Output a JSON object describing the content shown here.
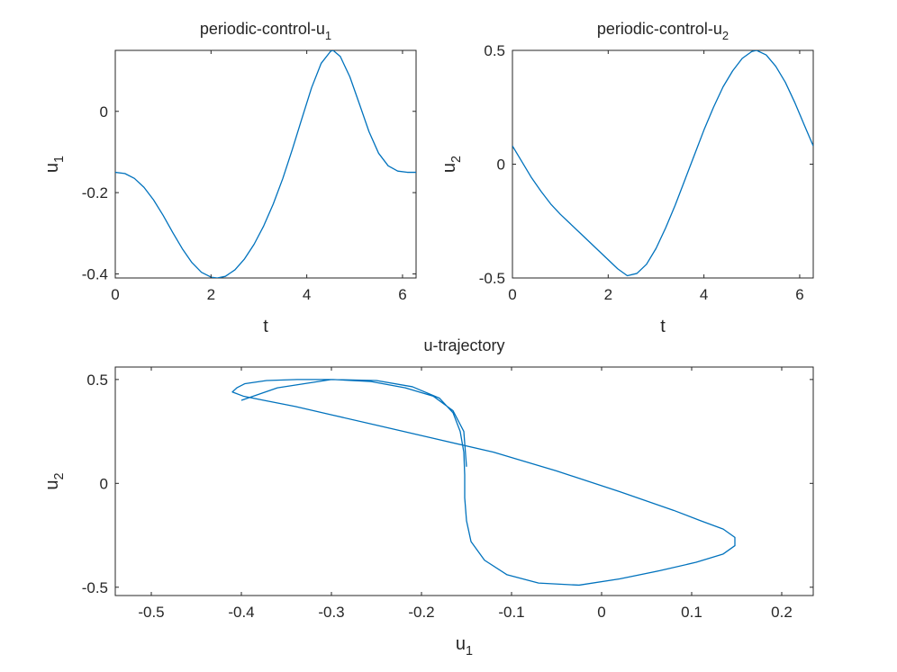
{
  "chart_data": [
    {
      "type": "line",
      "title": "periodic-control-u",
      "title_sub": "1",
      "xlabel": "t",
      "ylabel": "u",
      "ylabel_sub": "1",
      "xlim": [
        0,
        6.2832
      ],
      "ylim": [
        -0.41,
        0.15
      ],
      "xticks": [
        0,
        2,
        4,
        6
      ],
      "xtick_labels": [
        "0",
        "2",
        "4",
        "6"
      ],
      "yticks": [
        -0.4,
        -0.2,
        0
      ],
      "ytick_labels": [
        "-0.4",
        "-0.2",
        "0"
      ],
      "grid": false,
      "series": [
        {
          "color": "#0072bd",
          "x": [
            0,
            0.2,
            0.4,
            0.6,
            0.8,
            1.0,
            1.2,
            1.4,
            1.6,
            1.8,
            2.0,
            2.13,
            2.3,
            2.5,
            2.7,
            2.9,
            3.1,
            3.3,
            3.5,
            3.7,
            3.9,
            4.1,
            4.3,
            4.5,
            4.55,
            4.7,
            4.9,
            5.1,
            5.3,
            5.5,
            5.7,
            5.9,
            6.1,
            6.2832
          ],
          "y": [
            -0.15,
            -0.153,
            -0.165,
            -0.187,
            -0.218,
            -0.256,
            -0.298,
            -0.338,
            -0.372,
            -0.396,
            -0.408,
            -0.41,
            -0.406,
            -0.39,
            -0.363,
            -0.327,
            -0.282,
            -0.228,
            -0.165,
            -0.093,
            -0.017,
            0.058,
            0.118,
            0.148,
            0.15,
            0.135,
            0.085,
            0.018,
            -0.05,
            -0.103,
            -0.134,
            -0.147,
            -0.15,
            -0.15
          ]
        }
      ]
    },
    {
      "type": "line",
      "title": "periodic-control-u",
      "title_sub": "2",
      "xlabel": "t",
      "ylabel": "u",
      "ylabel_sub": "2",
      "xlim": [
        0,
        6.2832
      ],
      "ylim": [
        -0.5,
        0.5
      ],
      "xticks": [
        0,
        2,
        4,
        6
      ],
      "xtick_labels": [
        "0",
        "2",
        "4",
        "6"
      ],
      "yticks": [
        -0.5,
        0,
        0.5
      ],
      "ytick_labels": [
        "-0.5",
        "0",
        "0.5"
      ],
      "grid": false,
      "series": [
        {
          "color": "#0072bd",
          "x": [
            0,
            0.2,
            0.4,
            0.6,
            0.8,
            1.0,
            1.2,
            1.4,
            1.6,
            1.8,
            2.0,
            2.2,
            2.4,
            2.6,
            2.8,
            3.0,
            3.2,
            3.4,
            3.6,
            3.8,
            4.0,
            4.2,
            4.4,
            4.6,
            4.8,
            5.0,
            5.1,
            5.3,
            5.5,
            5.7,
            5.9,
            6.1,
            6.2832
          ],
          "y": [
            0.08,
            0.01,
            -0.06,
            -0.12,
            -0.175,
            -0.22,
            -0.26,
            -0.3,
            -0.34,
            -0.38,
            -0.42,
            -0.46,
            -0.49,
            -0.48,
            -0.44,
            -0.37,
            -0.28,
            -0.18,
            -0.07,
            0.04,
            0.15,
            0.25,
            0.34,
            0.41,
            0.465,
            0.495,
            0.5,
            0.48,
            0.43,
            0.36,
            0.27,
            0.17,
            0.08
          ]
        }
      ]
    },
    {
      "type": "line",
      "title": "u-trajectory",
      "xlabel": "u",
      "xlabel_sub": "1",
      "ylabel": "u",
      "ylabel_sub": "2",
      "xlim": [
        -0.54,
        0.235
      ],
      "ylim": [
        -0.54,
        0.56
      ],
      "xticks": [
        -0.5,
        -0.4,
        -0.3,
        -0.2,
        -0.1,
        0,
        0.1,
        0.2
      ],
      "xtick_labels": [
        "-0.5",
        "-0.4",
        "-0.3",
        "-0.2",
        "-0.1",
        "0",
        "0.1",
        "0.2"
      ],
      "yticks": [
        -0.5,
        0,
        0.5
      ],
      "ytick_labels": [
        "-0.5",
        "0",
        "0.5"
      ],
      "grid": false,
      "series": [
        {
          "color": "#0072bd",
          "x": [
            -0.15,
            -0.153,
            -0.165,
            -0.187,
            -0.218,
            -0.256,
            -0.298,
            -0.338,
            -0.372,
            -0.396,
            -0.405,
            -0.41,
            -0.398,
            -0.375,
            -0.34,
            -0.3,
            -0.25,
            -0.19,
            -0.12,
            -0.05,
            0.02,
            0.08,
            0.11,
            0.135,
            0.148,
            0.148,
            0.135,
            0.105,
            0.065,
            0.02,
            -0.025,
            -0.07,
            -0.105,
            -0.13,
            -0.145,
            -0.15,
            -0.152,
            -0.152,
            -0.153,
            -0.157,
            -0.165,
            -0.18,
            -0.21,
            -0.25,
            -0.3,
            -0.36,
            -0.4
          ],
          "y": [
            0.08,
            0.25,
            0.35,
            0.42,
            0.46,
            0.49,
            0.5,
            0.5,
            0.495,
            0.48,
            0.46,
            0.44,
            0.42,
            0.4,
            0.37,
            0.33,
            0.28,
            0.22,
            0.15,
            0.06,
            -0.04,
            -0.13,
            -0.18,
            -0.22,
            -0.26,
            -0.3,
            -0.34,
            -0.38,
            -0.42,
            -0.46,
            -0.49,
            -0.48,
            -0.44,
            -0.37,
            -0.28,
            -0.18,
            -0.07,
            0.04,
            0.15,
            0.25,
            0.34,
            0.41,
            0.465,
            0.495,
            0.5,
            0.46,
            0.4
          ]
        }
      ]
    }
  ]
}
